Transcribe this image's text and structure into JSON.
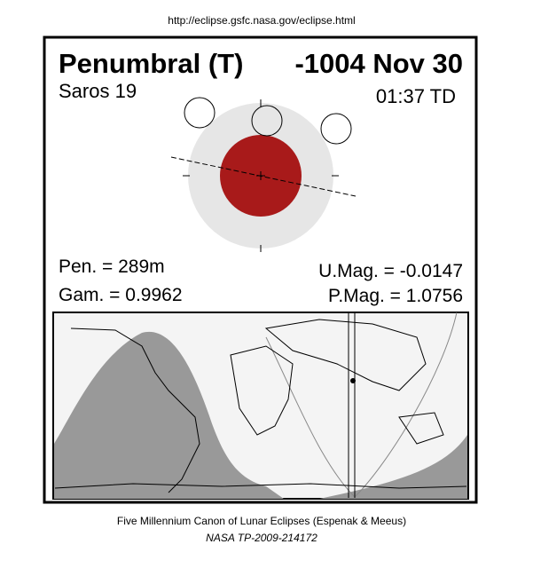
{
  "header": {
    "url": "http://eclipse.gsfc.nasa.gov/eclipse.html"
  },
  "panel": {
    "title_type": "Penumbral (T)",
    "title_date": "-1004 Nov 30",
    "saros": "Saros  19",
    "time": "01:37 TD",
    "pen": "Pen. = 289m",
    "gam": "Gam. = 0.9962",
    "umag": "U.Mag. = -0.0147",
    "pmag": "P.Mag. = 1.0756"
  },
  "footer": {
    "line1": "Five Millennium Canon of Lunar Eclipses (Espenak & Meeus)",
    "line2": "NASA TP-2009-214172"
  }
}
